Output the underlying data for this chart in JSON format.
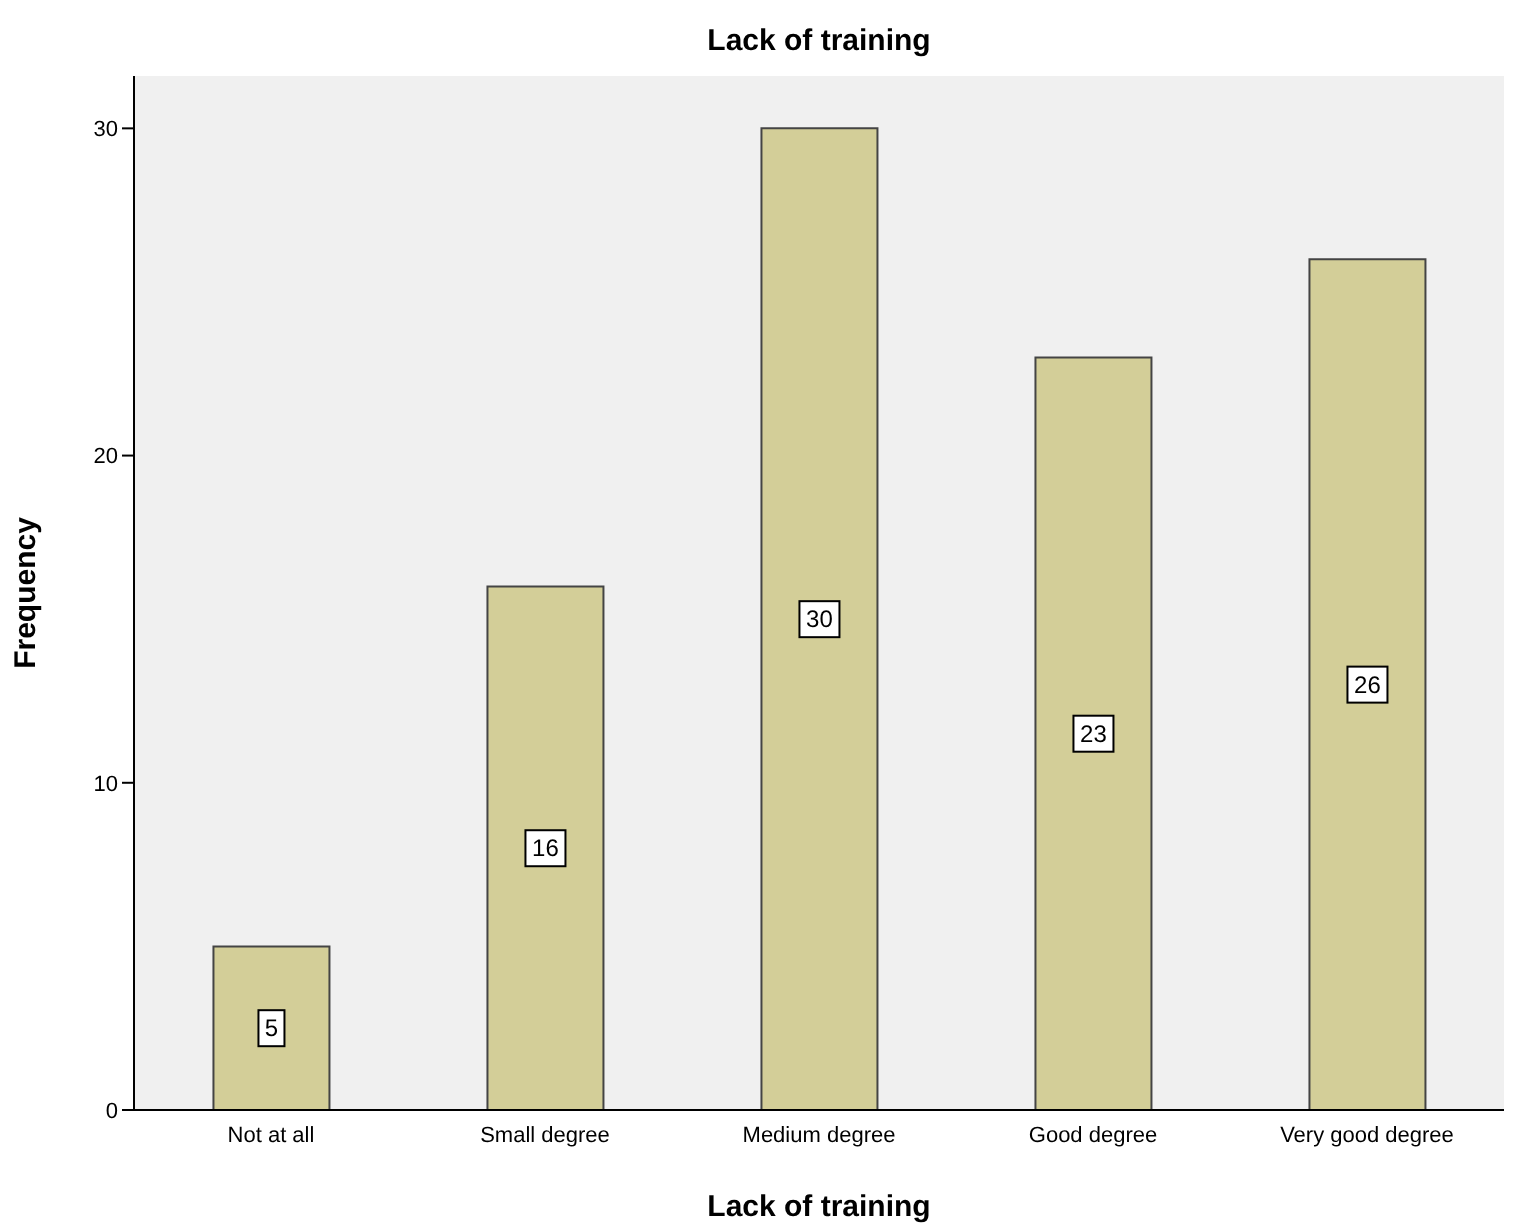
{
  "chart_data": {
    "type": "bar",
    "title": "Lack of training",
    "xlabel": "Lack of training",
    "ylabel": "Frequency",
    "categories": [
      "Not at all",
      "Small degree",
      "Medium degree",
      "Good degree",
      "Very good degree"
    ],
    "values": [
      5,
      16,
      30,
      23,
      26
    ],
    "color": "#d3ce98",
    "ylim": [
      0,
      31.6
    ],
    "yticks": [
      0,
      10,
      20,
      30
    ],
    "grid": false,
    "data_labels": true
  }
}
